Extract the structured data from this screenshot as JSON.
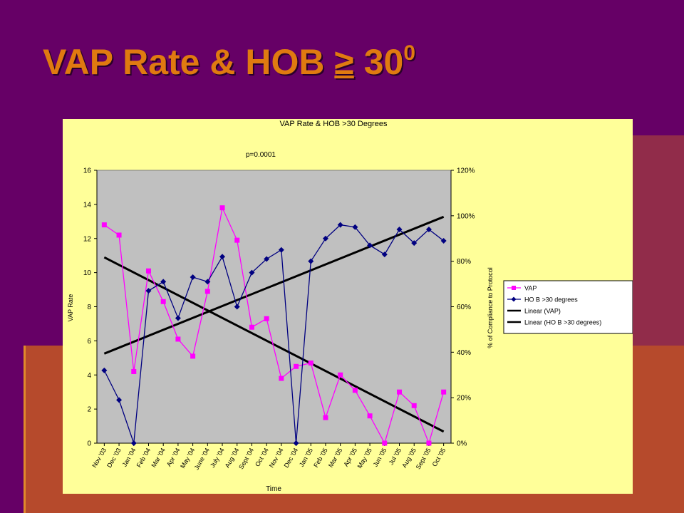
{
  "slide": {
    "title_main": "VAP Rate & HOB ",
    "title_symbol": "≥",
    "title_number": " 30",
    "title_superscript": "0",
    "colors": {
      "background": "#660066",
      "title": "#e07a10",
      "panel": "#ffff99",
      "plot": "#c0c0c0"
    }
  },
  "chart_data": {
    "type": "line",
    "title": "VAP Rate & HOB >30 Degrees",
    "annotation": "p=0.0001",
    "xlabel": "Time",
    "ylabel": "VAP Rate",
    "y2label": "% of Compliance to Protocol",
    "categories": [
      "Nov '03",
      "Dec '03",
      "Jan '04",
      "Feb '04",
      "Mar '04",
      "Apr '04",
      "May '04",
      "June '04",
      "July '04",
      "Aug '04",
      "Sept '04",
      "Oct '04",
      "Nov '04",
      "Dec '04",
      "Jan '05",
      "Feb '05",
      "Mar '05",
      "Apr '05",
      "May '05",
      "Jun '05",
      "Jul '05",
      "Aug '05",
      "Sept '05",
      "Oct '05"
    ],
    "ylim": [
      0,
      16
    ],
    "yticks": [
      "0",
      "2",
      "4",
      "6",
      "8",
      "10",
      "12",
      "14",
      "16"
    ],
    "y2lim": [
      0,
      120
    ],
    "y2ticks": [
      "0%",
      "20%",
      "40%",
      "60%",
      "80%",
      "100%",
      "120%"
    ],
    "grid": false,
    "legend_position": "right",
    "series": [
      {
        "name": "VAP",
        "axis": "left",
        "color": "#ff00ff",
        "marker": "square",
        "values": [
          12.8,
          12.2,
          4.2,
          10.1,
          8.3,
          6.1,
          5.1,
          8.9,
          13.8,
          11.9,
          6.8,
          7.3,
          3.8,
          4.5,
          4.7,
          1.5,
          4.0,
          3.1,
          1.6,
          0.0,
          3.0,
          2.2,
          0.0,
          3.0
        ]
      },
      {
        "name": "HO B >30 degrees",
        "axis": "right",
        "color": "#000080",
        "marker": "diamond",
        "values": [
          32,
          19,
          0,
          67,
          71,
          55,
          73,
          71,
          82,
          60,
          75,
          81,
          85,
          0,
          80,
          90,
          96,
          95,
          87,
          83,
          94,
          88,
          94,
          89
        ]
      },
      {
        "name": "Linear (VAP)",
        "axis": "left",
        "color": "#000000",
        "trend_of": "VAP"
      },
      {
        "name": "Linear (HO B >30 degrees)",
        "axis": "right",
        "color": "#000000",
        "trend_of": "HO B >30 degrees"
      }
    ]
  }
}
